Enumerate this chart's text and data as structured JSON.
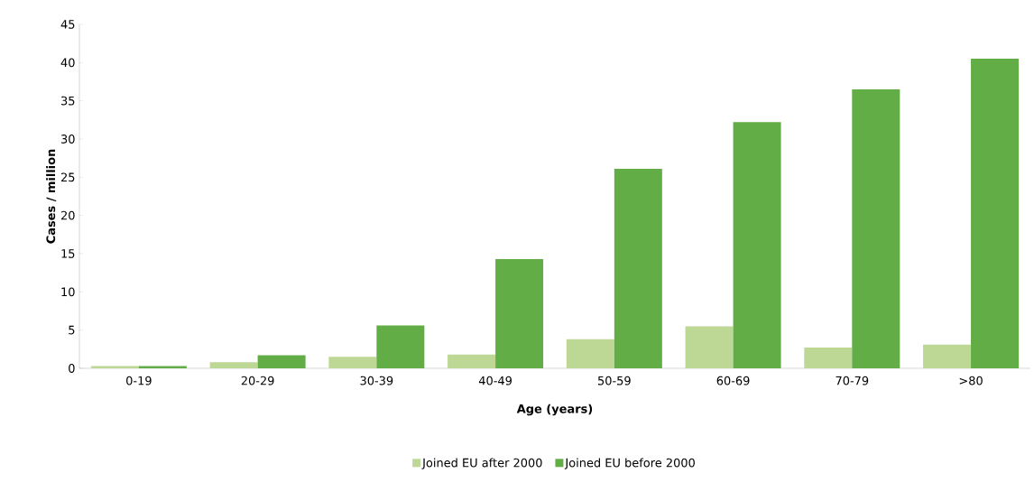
{
  "chart_data": {
    "type": "bar",
    "xlabel": "Age (years)",
    "ylabel": "Cases / million",
    "categories": [
      "0-19",
      "20-29",
      "30-39",
      "40-49",
      "50-59",
      "60-69",
      "70-79",
      ">80"
    ],
    "series": [
      {
        "name": "Joined EU after 2000",
        "color": "#bdd795",
        "values": [
          0.3,
          0.8,
          1.5,
          1.8,
          3.8,
          5.5,
          2.7,
          3.1
        ]
      },
      {
        "name": "Joined EU before 2000",
        "color": "#62ad45",
        "values": [
          0.3,
          1.7,
          5.6,
          14.3,
          26.1,
          32.2,
          36.5,
          40.5
        ]
      }
    ],
    "ylim": [
      0,
      45
    ],
    "yticks": [
      0,
      5,
      10,
      15,
      20,
      25,
      30,
      35,
      40,
      45
    ],
    "grid": false,
    "legend": "bottom"
  }
}
